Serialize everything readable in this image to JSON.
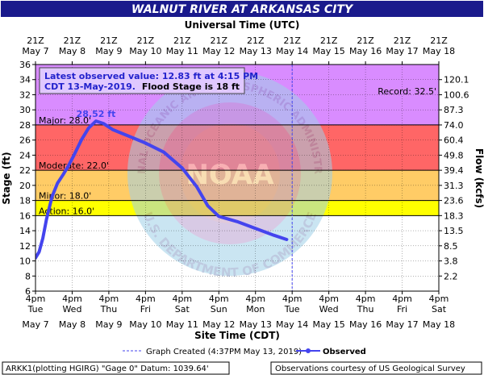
{
  "chart_data": {
    "type": "line",
    "title": "WALNUT RIVER AT ARKANSAS CITY",
    "top_axis_title": "Universal Time (UTC)",
    "xlabel": "Site Time (CDT)",
    "ylabel": "Stage (ft)",
    "y2label": "Flow (kcfs)",
    "ylim": [
      6,
      36
    ],
    "y_ticks": [
      6,
      8,
      10,
      12,
      14,
      16,
      18,
      20,
      22,
      24,
      26,
      28,
      30,
      32,
      34,
      36
    ],
    "xlim_days": [
      0,
      11
    ],
    "x_tick_hours": [
      "4pm",
      "4pm",
      "4pm",
      "4pm",
      "4pm",
      "4pm",
      "4pm",
      "4pm",
      "4pm",
      "4pm",
      "4pm",
      "4pm"
    ],
    "x_tick_weekdays": [
      "Tue",
      "Wed",
      "Thu",
      "Fri",
      "Sat",
      "Sun",
      "Mon",
      "Tue",
      "Wed",
      "Thu",
      "Fri",
      "Sat"
    ],
    "x_tick_dates": [
      "May 7",
      "May 8",
      "May 9",
      "May 10",
      "May 11",
      "May 12",
      "May 13",
      "May 14",
      "May 15",
      "May 16",
      "May 17",
      "May 18"
    ],
    "utc_tick_times": [
      "21Z",
      "21Z",
      "21Z",
      "21Z",
      "21Z",
      "21Z",
      "21Z",
      "21Z",
      "21Z",
      "21Z",
      "21Z",
      "21Z"
    ],
    "utc_tick_dates": [
      "May 7",
      "May 8",
      "May 9",
      "May 10",
      "May 11",
      "May 12",
      "May 13",
      "May 14",
      "May 15",
      "May 16",
      "May 17",
      "May 18"
    ],
    "flow_ticks": [
      {
        "stage": 8,
        "label": "2.2"
      },
      {
        "stage": 10,
        "label": "3.8"
      },
      {
        "stage": 12,
        "label": "8.5"
      },
      {
        "stage": 14,
        "label": "13.5"
      },
      {
        "stage": 16,
        "label": "18.3"
      },
      {
        "stage": 18,
        "label": "23.6"
      },
      {
        "stage": 20,
        "label": "31.3"
      },
      {
        "stage": 22,
        "label": "39.4"
      },
      {
        "stage": 24,
        "label": "49.8"
      },
      {
        "stage": 26,
        "label": "60.4"
      },
      {
        "stage": 28,
        "label": "74.0"
      },
      {
        "stage": 30,
        "label": "87.3"
      },
      {
        "stage": 32,
        "label": "100.6"
      },
      {
        "stage": 34,
        "label": "120.1"
      }
    ],
    "bands": [
      {
        "from": 16,
        "to": 18,
        "color": "#ffff00"
      },
      {
        "from": 18,
        "to": 22,
        "color": "#ffcc66"
      },
      {
        "from": 22,
        "to": 28,
        "color": "#ff6666"
      },
      {
        "from": 28,
        "to": 36,
        "color": "#d98cff"
      }
    ],
    "thresholds": [
      {
        "label": "Action: 16.0'",
        "stage": 16
      },
      {
        "label": "Minor: 18.0'",
        "stage": 18
      },
      {
        "label": "Moderate: 22.0'",
        "stage": 22
      },
      {
        "label": "Major: 28.0'",
        "stage": 28
      }
    ],
    "record": {
      "label": "Record: 32.5'",
      "stage": 32.5
    },
    "series": [
      {
        "name": "Observed",
        "color": "#4444ee",
        "points": [
          [
            0.0,
            10.4
          ],
          [
            0.1,
            11.2
          ],
          [
            0.2,
            13.0
          ],
          [
            0.3,
            15.5
          ],
          [
            0.45,
            18.5
          ],
          [
            0.6,
            20.3
          ],
          [
            0.75,
            21.4
          ],
          [
            0.9,
            22.6
          ],
          [
            1.05,
            24.0
          ],
          [
            1.25,
            26.0
          ],
          [
            1.45,
            27.6
          ],
          [
            1.65,
            28.52
          ],
          [
            1.85,
            28.2
          ],
          [
            2.1,
            27.4
          ],
          [
            2.5,
            26.6
          ],
          [
            3.0,
            25.6
          ],
          [
            3.5,
            24.4
          ],
          [
            4.0,
            22.3
          ],
          [
            4.4,
            19.8
          ],
          [
            4.7,
            17.3
          ],
          [
            5.0,
            15.9
          ],
          [
            5.5,
            15.2
          ],
          [
            6.0,
            14.3
          ],
          [
            6.5,
            13.4
          ],
          [
            6.85,
            12.83
          ]
        ]
      }
    ],
    "peak_label": {
      "text": "28.52 ft",
      "x": 1.65,
      "y": 28.52
    },
    "graph_created_x": 7.0,
    "info_box": {
      "line1": "Latest observed value: 12.83 ft at 4:15 PM",
      "line2_blue": "CDT 13-May-2019.",
      "line2_black": "Flood Stage is 18 ft"
    },
    "legend": {
      "graph_created": "Graph Created (4:37PM May 13, 2019)",
      "observed": "Observed"
    },
    "footer": {
      "left": "ARKK1(plotting HGIRG) \"Gage 0\" Datum: 1039.64'",
      "right": "Observations courtesy of US Geological Survey"
    },
    "watermark": {
      "center_text": "NOAA",
      "top_text": "NATIONAL OCEANIC AND ATMOSPHERIC ADMINISTRATION",
      "bottom_text": "U.S. DEPARTMENT OF COMMERCE"
    },
    "colors": {
      "title_bg": "#1a1a8c",
      "title_fg": "#ffffff",
      "series": "#4444ee",
      "info_text": "#2222cc",
      "info_bg": "#e0c8ff"
    }
  }
}
